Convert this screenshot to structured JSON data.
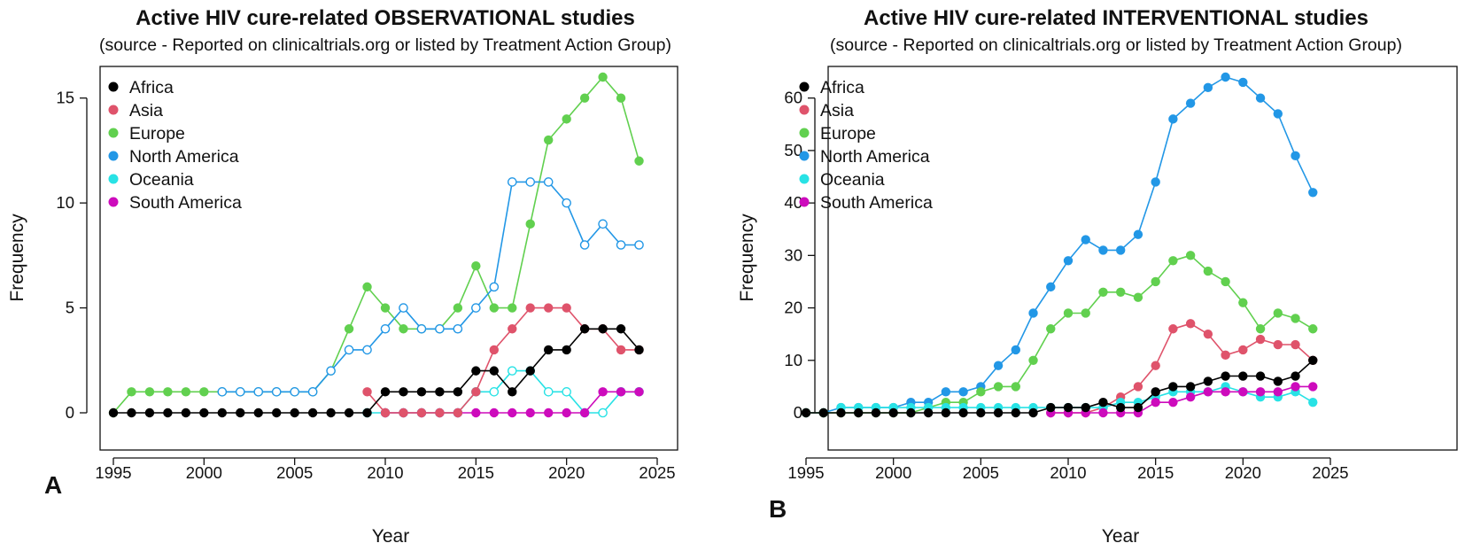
{
  "colors": {
    "Africa": "#000000",
    "Asia": "#DF536B",
    "Europe": "#61D04F",
    "North America": "#2297E6",
    "Oceania": "#28E2E5",
    "South America": "#CD0BBC"
  },
  "chart_data": [
    {
      "type": "line",
      "panel_letter": "A",
      "title": "Active HIV cure-related OBSERVATIONAL studies",
      "subtitle": "(source - Reported on clinicaltrials.org or listed by Treatment Action Group)",
      "xlabel": "Year",
      "ylabel": "Frequency",
      "xlim": [
        1995,
        2025
      ],
      "ylim": [
        0,
        16
      ],
      "xticks": [
        1995,
        2000,
        2005,
        2010,
        2015,
        2020,
        2025
      ],
      "yticks": [
        0,
        5,
        10,
        15
      ],
      "legend_position": "top-left",
      "legend": [
        "Africa",
        "Asia",
        "Europe",
        "North America",
        "Oceania",
        "South America"
      ],
      "series": [
        {
          "name": "Oceania",
          "x": [
            2009,
            2010,
            2011,
            2012,
            2013,
            2014,
            2015,
            2016,
            2017,
            2018,
            2019,
            2020,
            2021,
            2022,
            2023,
            2024
          ],
          "y": [
            0,
            0,
            0,
            0,
            0,
            0,
            1,
            1,
            2,
            2,
            1,
            1,
            0,
            0,
            1,
            1
          ],
          "open": true
        },
        {
          "name": "South America",
          "x": [
            2010,
            2011,
            2012,
            2013,
            2014,
            2015,
            2016,
            2017,
            2018,
            2019,
            2020,
            2021,
            2022,
            2023,
            2024
          ],
          "y": [
            0,
            0,
            0,
            0,
            0,
            0,
            0,
            0,
            0,
            0,
            0,
            0,
            1,
            1,
            1
          ],
          "open": false
        },
        {
          "name": "Asia",
          "x": [
            2009,
            2010,
            2011,
            2012,
            2013,
            2014,
            2015,
            2016,
            2017,
            2018,
            2019,
            2020,
            2021,
            2022,
            2023,
            2024
          ],
          "y": [
            1,
            0,
            0,
            0,
            0,
            0,
            1,
            3,
            4,
            5,
            5,
            5,
            4,
            4,
            3,
            3
          ],
          "open": false
        },
        {
          "name": "Europe",
          "x": [
            1995,
            1996,
            1997,
            1998,
            1999,
            2000,
            2001,
            2002,
            2003,
            2004,
            2005,
            2006,
            2007,
            2008,
            2009,
            2010,
            2011,
            2012,
            2013,
            2014,
            2015,
            2016,
            2017,
            2018,
            2019,
            2020,
            2021,
            2022,
            2023,
            2024
          ],
          "y": [
            0,
            1,
            1,
            1,
            1,
            1,
            1,
            1,
            1,
            1,
            1,
            1,
            2,
            4,
            6,
            5,
            4,
            4,
            4,
            5,
            7,
            5,
            5,
            9,
            13,
            14,
            15,
            16,
            15,
            12
          ],
          "open": false
        },
        {
          "name": "North America",
          "x": [
            2001,
            2002,
            2003,
            2004,
            2005,
            2006,
            2007,
            2008,
            2009,
            2010,
            2011,
            2012,
            2013,
            2014,
            2015,
            2016,
            2017,
            2018,
            2019,
            2020,
            2021,
            2022,
            2023,
            2024
          ],
          "y": [
            1,
            1,
            1,
            1,
            1,
            1,
            2,
            3,
            3,
            4,
            5,
            4,
            4,
            4,
            5,
            6,
            11,
            11,
            11,
            10,
            8,
            9,
            8,
            8
          ],
          "open": true
        },
        {
          "name": "Africa",
          "x": [
            1995,
            1996,
            1997,
            1998,
            1999,
            2000,
            2001,
            2002,
            2003,
            2004,
            2005,
            2006,
            2007,
            2008,
            2009,
            2010,
            2011,
            2012,
            2013,
            2014,
            2015,
            2016,
            2017,
            2018,
            2019,
            2020,
            2021,
            2022,
            2023,
            2024
          ],
          "y": [
            0,
            0,
            0,
            0,
            0,
            0,
            0,
            0,
            0,
            0,
            0,
            0,
            0,
            0,
            0,
            1,
            1,
            1,
            1,
            1,
            2,
            2,
            1,
            2,
            3,
            3,
            4,
            4,
            4,
            3
          ],
          "open": false
        }
      ]
    },
    {
      "type": "line",
      "panel_letter": "B",
      "title": "Active HIV cure-related INTERVENTIONAL studies",
      "subtitle": "(source - Reported on clinicaltrials.org or listed by Treatment Action Group)",
      "xlabel": "Year",
      "ylabel": "Frequency",
      "xlim": [
        1995,
        2025
      ],
      "ylim": [
        0,
        64
      ],
      "xticks": [
        1995,
        2000,
        2005,
        2010,
        2015,
        2020,
        2025
      ],
      "yticks": [
        0,
        10,
        20,
        30,
        40,
        50,
        60
      ],
      "legend_position": "top-left",
      "legend": [
        "Africa",
        "Asia",
        "Europe",
        "North America",
        "Oceania",
        "South America"
      ],
      "series": [
        {
          "name": "North America",
          "x": [
            1995,
            1996,
            1997,
            1998,
            1999,
            2000,
            2001,
            2002,
            2003,
            2004,
            2005,
            2006,
            2007,
            2008,
            2009,
            2010,
            2011,
            2012,
            2013,
            2014,
            2015,
            2016,
            2017,
            2018,
            2019,
            2020,
            2021,
            2022,
            2023,
            2024
          ],
          "y": [
            0,
            0,
            1,
            1,
            1,
            1,
            2,
            2,
            4,
            4,
            5,
            9,
            12,
            19,
            24,
            29,
            33,
            31,
            31,
            34,
            44,
            56,
            59,
            62,
            64,
            63,
            60,
            57,
            49,
            42
          ],
          "open": false
        },
        {
          "name": "Europe",
          "x": [
            1995,
            1996,
            1997,
            1998,
            1999,
            2000,
            2001,
            2002,
            2003,
            2004,
            2005,
            2006,
            2007,
            2008,
            2009,
            2010,
            2011,
            2012,
            2013,
            2014,
            2015,
            2016,
            2017,
            2018,
            2019,
            2020,
            2021,
            2022,
            2023,
            2024
          ],
          "y": [
            0,
            0,
            0,
            0,
            0,
            0,
            0,
            1,
            2,
            2,
            4,
            5,
            5,
            10,
            16,
            19,
            19,
            23,
            23,
            22,
            25,
            29,
            30,
            27,
            25,
            21,
            16,
            19,
            18,
            16
          ],
          "open": false
        },
        {
          "name": "Asia",
          "x": [
            2009,
            2010,
            2011,
            2012,
            2013,
            2014,
            2015,
            2016,
            2017,
            2018,
            2019,
            2020,
            2021,
            2022,
            2023,
            2024
          ],
          "y": [
            0,
            0,
            0,
            1,
            3,
            5,
            9,
            16,
            17,
            15,
            11,
            12,
            14,
            13,
            13,
            10
          ],
          "open": false
        },
        {
          "name": "Oceania",
          "x": [
            1997,
            1998,
            1999,
            2000,
            2001,
            2002,
            2003,
            2004,
            2005,
            2006,
            2007,
            2008,
            2009,
            2010,
            2011,
            2012,
            2013,
            2014,
            2015,
            2016,
            2017,
            2018,
            2019,
            2020,
            2021,
            2022,
            2023,
            2024
          ],
          "y": [
            1,
            1,
            1,
            1,
            1,
            1,
            1,
            1,
            1,
            1,
            1,
            1,
            1,
            1,
            1,
            1,
            2,
            2,
            3,
            4,
            4,
            4,
            5,
            4,
            3,
            3,
            4,
            2
          ],
          "open": false
        },
        {
          "name": "South America",
          "x": [
            2009,
            2010,
            2011,
            2012,
            2013,
            2014,
            2015,
            2016,
            2017,
            2018,
            2019,
            2020,
            2021,
            2022,
            2023,
            2024
          ],
          "y": [
            0,
            0,
            0,
            0,
            0,
            0,
            2,
            2,
            3,
            4,
            4,
            4,
            4,
            4,
            5,
            5
          ],
          "open": false
        },
        {
          "name": "Africa",
          "x": [
            1995,
            1996,
            1997,
            1998,
            1999,
            2000,
            2001,
            2002,
            2003,
            2004,
            2005,
            2006,
            2007,
            2008,
            2009,
            2010,
            2011,
            2012,
            2013,
            2014,
            2015,
            2016,
            2017,
            2018,
            2019,
            2020,
            2021,
            2022,
            2023,
            2024
          ],
          "y": [
            0,
            0,
            0,
            0,
            0,
            0,
            0,
            0,
            0,
            0,
            0,
            0,
            0,
            0,
            1,
            1,
            1,
            2,
            1,
            1,
            4,
            5,
            5,
            6,
            7,
            7,
            7,
            6,
            7,
            10
          ],
          "open": false
        }
      ]
    }
  ]
}
